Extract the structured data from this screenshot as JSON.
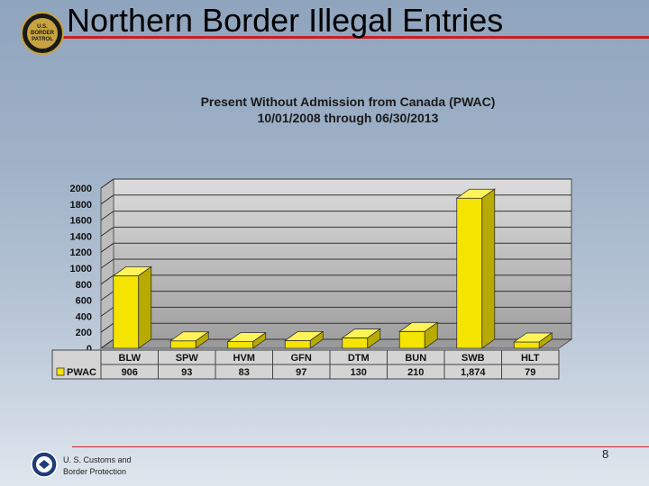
{
  "page": {
    "title": "Northern Border Illegal Entries",
    "page_number": "8",
    "agency_line1": "U. S. Customs and",
    "agency_line2": "Border Protection",
    "badge_line1": "U.S.",
    "badge_line2": "BORDER",
    "badge_line3": "PATROL"
  },
  "chart_data": {
    "type": "bar",
    "title_line1": "Present Without Admission from Canada (PWAC)",
    "title_line2": "10/01/2008  through 06/30/2013",
    "categories": [
      "BLW",
      "SPW",
      "HVM",
      "GFN",
      "DTM",
      "BUN",
      "SWB",
      "HLT"
    ],
    "series": [
      {
        "name": "PWAC",
        "values": [
          906,
          93,
          83,
          97,
          130,
          210,
          1874,
          79
        ],
        "labels": [
          "906",
          "93",
          "83",
          "97",
          "130",
          "210",
          "1,874",
          "79"
        ],
        "color": "#f5e400"
      }
    ],
    "ylim": [
      0,
      2000
    ],
    "yticks": [
      0,
      200,
      400,
      600,
      800,
      1000,
      1200,
      1400,
      1600,
      1800,
      2000
    ],
    "grid": true,
    "data_table": true
  }
}
